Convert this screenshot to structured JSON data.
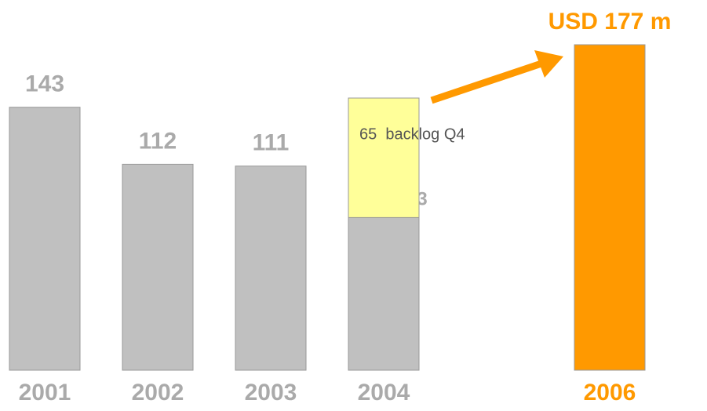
{
  "chart_data": {
    "type": "bar",
    "categories": [
      "2001",
      "2002",
      "2003",
      "2004",
      "2006"
    ],
    "series": [
      {
        "values": [
          143,
          112,
          111,
          83,
          177
        ],
        "colors": [
          "#c0c0c0",
          "#c0c0c0",
          "#c0c0c0",
          "#c0c0c0",
          "#ff9900"
        ],
        "value_labels": [
          "143",
          "112",
          "111",
          "83 Q1-3",
          "USD 177 m"
        ]
      },
      {
        "values": [
          null,
          null,
          null,
          65,
          null
        ],
        "color": "#ffff99",
        "value_labels": [
          null,
          null,
          null,
          "65  backlog Q4",
          null
        ]
      }
    ]
  }
}
